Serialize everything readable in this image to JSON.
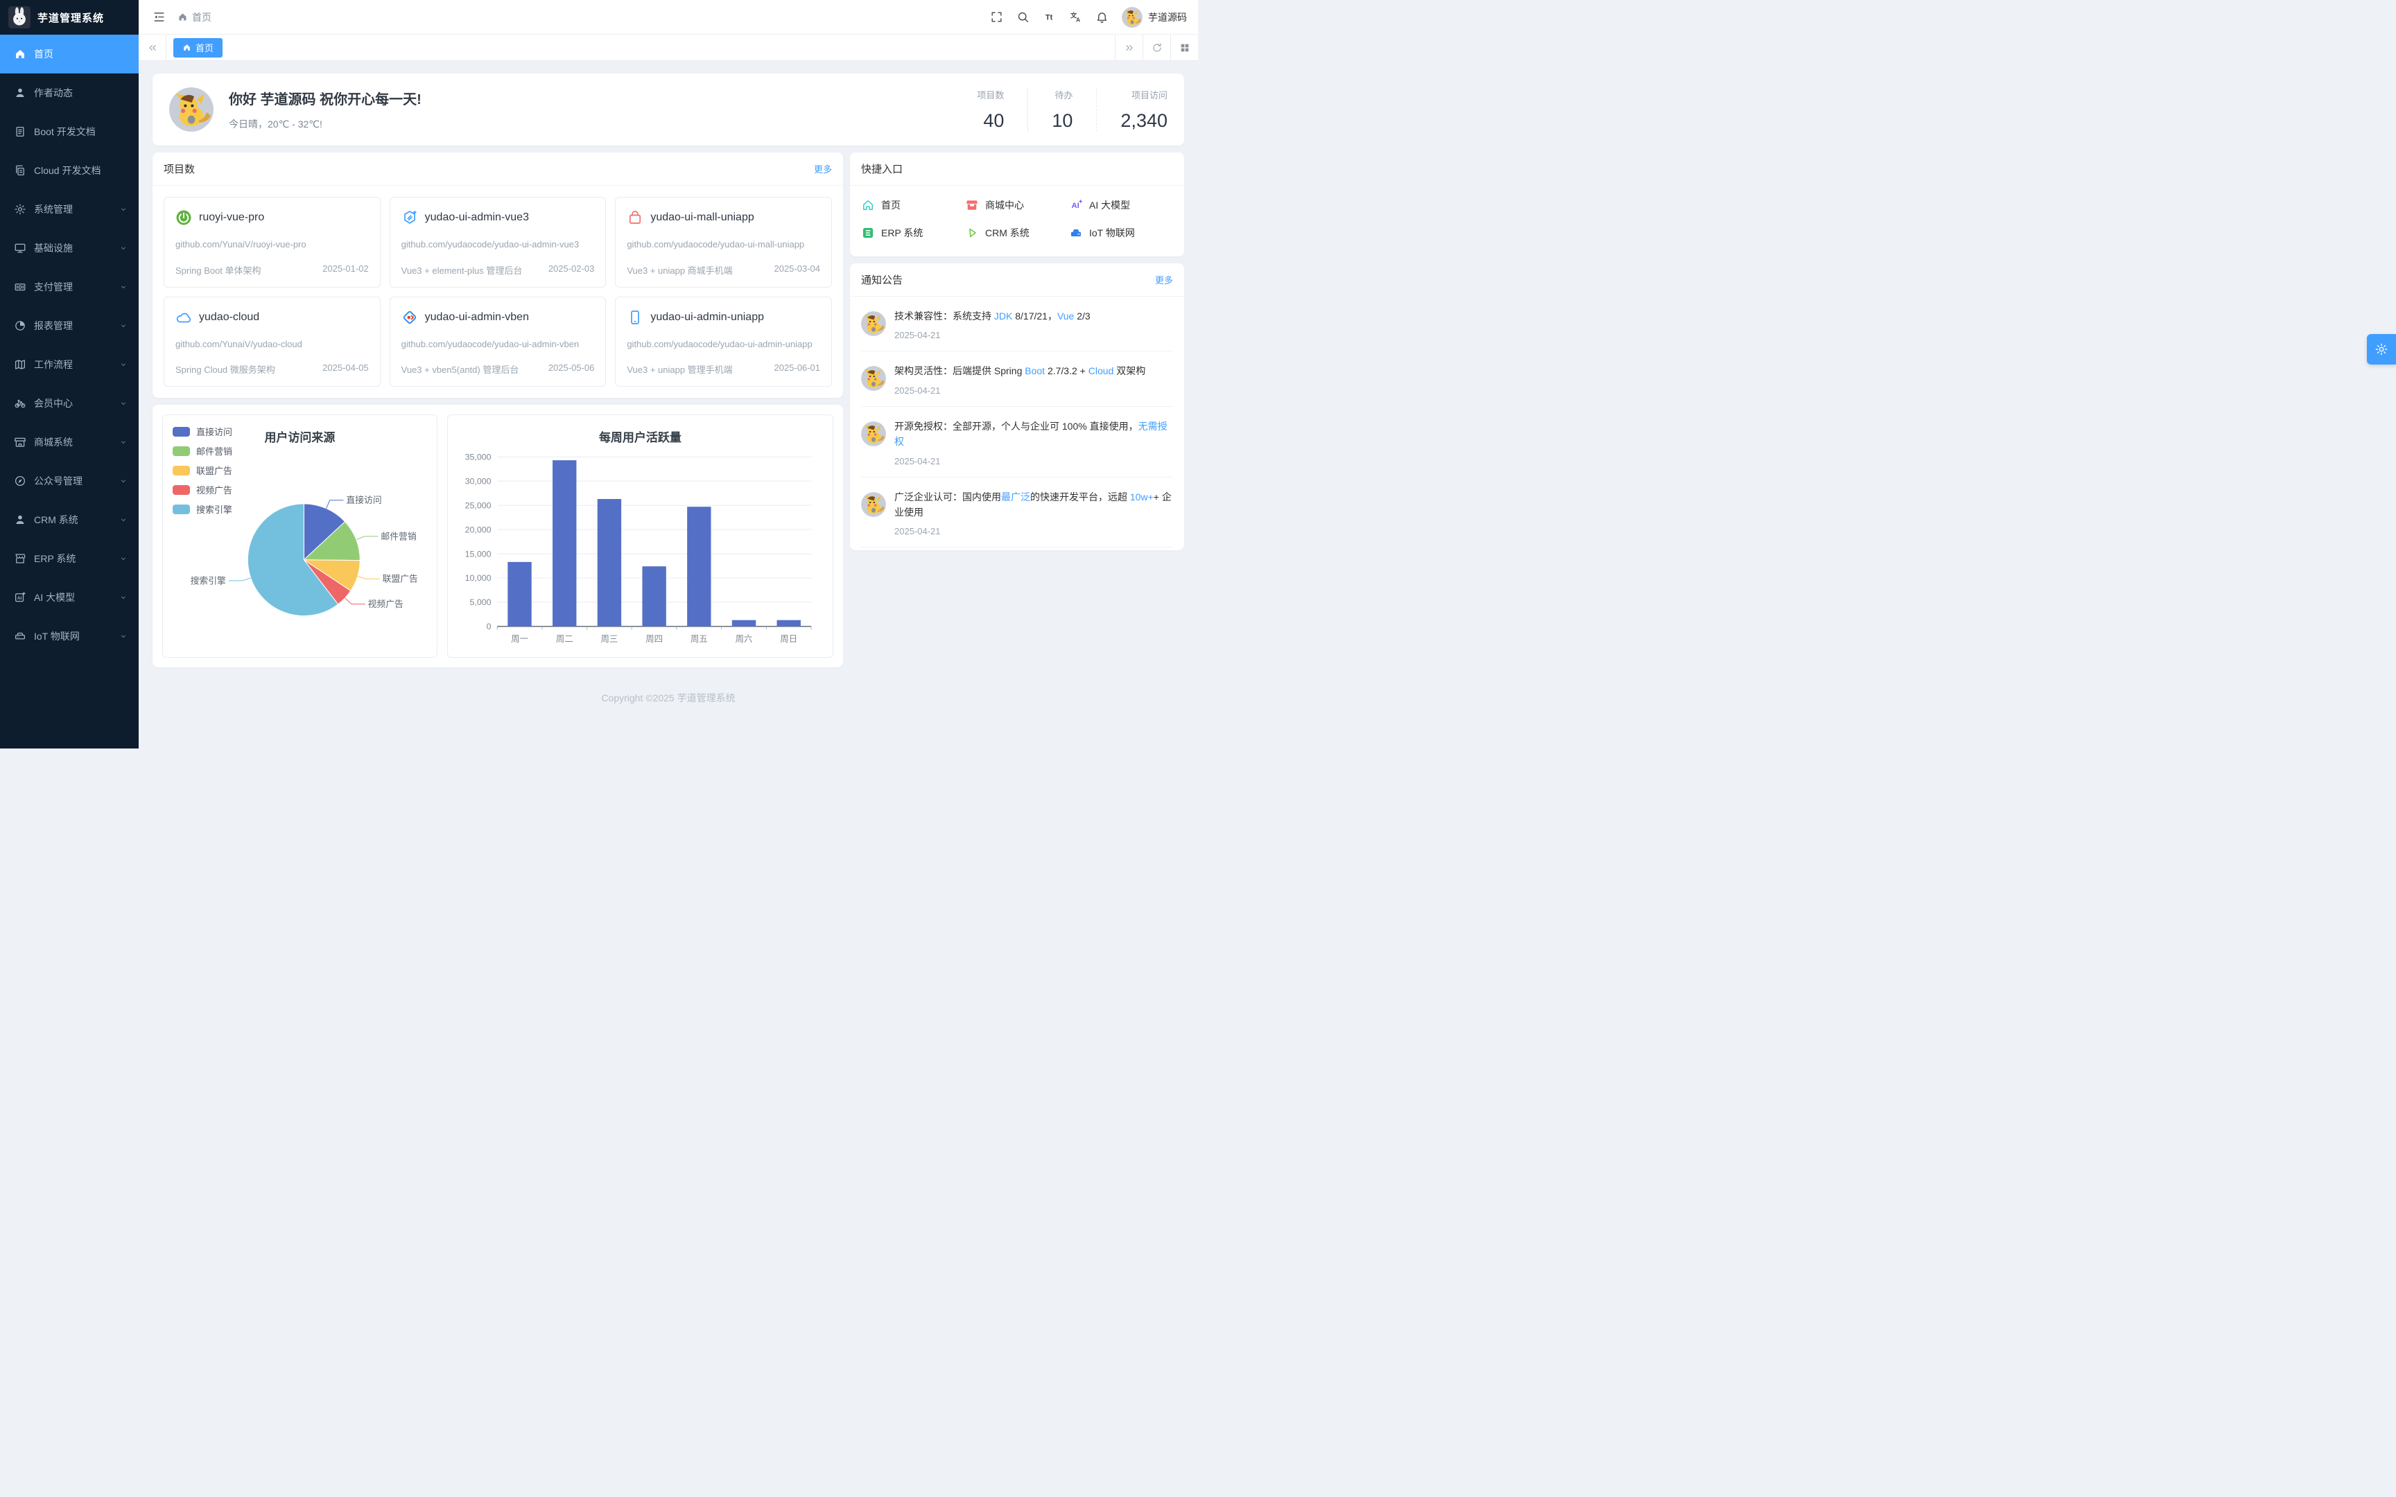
{
  "app": {
    "footer": "Copyright ©2025 芋道管理系统"
  },
  "sidebar": {
    "logo_title": "芋道管理系统",
    "items": [
      {
        "label": "首页",
        "icon": "home",
        "active": true,
        "children": false
      },
      {
        "label": "作者动态",
        "icon": "user",
        "children": false
      },
      {
        "label": "Boot 开发文档",
        "icon": "document",
        "children": false
      },
      {
        "label": "Cloud 开发文档",
        "icon": "documents",
        "children": false
      },
      {
        "label": "系统管理",
        "icon": "gear",
        "children": true
      },
      {
        "label": "基础设施",
        "icon": "monitor",
        "children": true
      },
      {
        "label": "支付管理",
        "icon": "money",
        "children": true
      },
      {
        "label": "报表管理",
        "icon": "pie",
        "children": true
      },
      {
        "label": "工作流程",
        "icon": "workflow",
        "children": true
      },
      {
        "label": "会员中心",
        "icon": "bicycle",
        "children": true
      },
      {
        "label": "商城系统",
        "icon": "shop",
        "children": true
      },
      {
        "label": "公众号管理",
        "icon": "compass",
        "children": true
      },
      {
        "label": "CRM 系统",
        "icon": "user",
        "children": true
      },
      {
        "label": "ERP 系统",
        "icon": "store",
        "children": true
      },
      {
        "label": "AI 大模型",
        "icon": "ai",
        "children": true
      },
      {
        "label": "IoT 物联网",
        "icon": "iot",
        "children": true
      }
    ]
  },
  "header": {
    "breadcrumb": "首页",
    "username": "芋道源码"
  },
  "tabbar": {
    "active_tab": "首页"
  },
  "welcome": {
    "title": "你好 芋道源码 祝你开心每一天!",
    "subtitle": "今日晴，20℃ - 32℃!",
    "stats": [
      {
        "label": "项目数",
        "value": "40"
      },
      {
        "label": "待办",
        "value": "10"
      },
      {
        "label": "项目访问",
        "value": "2,340"
      }
    ]
  },
  "projects": {
    "title": "项目数",
    "more": "更多",
    "cards": [
      {
        "name": "ruoyi-vue-pro",
        "icon": "spring",
        "color": "#62b142",
        "url": "github.com/YunaiV/ruoyi-vue-pro",
        "desc": "Spring Boot 单体架构",
        "date": "2025-01-02"
      },
      {
        "name": "yudao-ui-admin-vue3",
        "icon": "hexedit",
        "color": "#409eff",
        "url": "github.com/yudaocode/yudao-ui-admin-vue3",
        "desc": "Vue3 + element-plus 管理后台",
        "date": "2025-02-03"
      },
      {
        "name": "yudao-ui-mall-uniapp",
        "icon": "bag",
        "color": "#f56c6c",
        "url": "github.com/yudaocode/yudao-ui-mall-uniapp",
        "desc": "Vue3 + uniapp 商城手机端",
        "date": "2025-03-04"
      },
      {
        "name": "yudao-cloud",
        "icon": "cloud",
        "color": "#409eff",
        "url": "github.com/YunaiV/yudao-cloud",
        "desc": "Spring Cloud 微服务架构",
        "date": "2025-04-05"
      },
      {
        "name": "yudao-ui-admin-vben",
        "icon": "vben",
        "color": "#2d8cf0",
        "url": "github.com/yudaocode/yudao-ui-admin-vben",
        "desc": "Vue3 + vben5(antd) 管理后台",
        "date": "2025-05-06"
      },
      {
        "name": "yudao-ui-admin-uniapp",
        "icon": "phone",
        "color": "#409eff",
        "url": "github.com/yudaocode/yudao-ui-admin-uniapp",
        "desc": "Vue3 + uniapp 管理手机端",
        "date": "2025-06-01"
      }
    ]
  },
  "quick": {
    "title": "快捷入口",
    "links": [
      {
        "label": "首页",
        "icon": "qhome",
        "color": "#2ecfc0"
      },
      {
        "label": "商城中心",
        "icon": "qshop",
        "color": "#f56c6c"
      },
      {
        "label": "AI 大模型",
        "icon": "qai",
        "color": "#7b5bf3"
      },
      {
        "label": "ERP 系统",
        "icon": "qerp",
        "color": "#2fbf71"
      },
      {
        "label": "CRM 系统",
        "icon": "qcrm",
        "color": "#67c23a"
      },
      {
        "label": "IoT 物联网",
        "icon": "qiot",
        "color": "#2e7ef0"
      }
    ]
  },
  "notices": {
    "title": "通知公告",
    "more": "更多",
    "items": [
      {
        "segments": [
          {
            "t": "技术兼容性：系统支持 "
          },
          {
            "t": "JDK",
            "link": true
          },
          {
            "t": " 8/17/21，"
          },
          {
            "t": "Vue",
            "link": true
          },
          {
            "t": " 2/3"
          }
        ],
        "date": "2025-04-21"
      },
      {
        "segments": [
          {
            "t": "架构灵活性：后端提供 Spring "
          },
          {
            "t": "Boot",
            "link": true
          },
          {
            "t": " 2.7/3.2 + "
          },
          {
            "t": "Cloud",
            "link": true
          },
          {
            "t": " 双架构"
          }
        ],
        "date": "2025-04-21"
      },
      {
        "segments": [
          {
            "t": "开源免授权：全部开源，个人与企业可 100% 直接使用，"
          },
          {
            "t": "无需授权",
            "link": true
          }
        ],
        "date": "2025-04-21"
      },
      {
        "segments": [
          {
            "t": "广泛企业认可：国内使用"
          },
          {
            "t": "最广泛",
            "link": true
          },
          {
            "t": "的快速开发平台，远超 "
          },
          {
            "t": "10w+",
            "link": true
          },
          {
            "t": "+ 企业使用"
          }
        ],
        "date": "2025-04-21"
      }
    ]
  },
  "chart_data": [
    {
      "type": "pie",
      "title": "用户访问来源",
      "legend_position": "top-left",
      "legend": [
        "直接访问",
        "邮件营销",
        "联盟广告",
        "视频广告",
        "搜索引擎"
      ],
      "series": [
        {
          "name": "直接访问",
          "value": 335
        },
        {
          "name": "邮件营销",
          "value": 310
        },
        {
          "name": "联盟广告",
          "value": 234
        },
        {
          "name": "视频广告",
          "value": 135
        },
        {
          "name": "搜索引擎",
          "value": 1548
        }
      ],
      "colors": [
        "#5470c6",
        "#91cc75",
        "#fac858",
        "#ee6666",
        "#73c0de"
      ]
    },
    {
      "type": "bar",
      "title": "每周用户活跃量",
      "categories": [
        "周一",
        "周二",
        "周三",
        "周四",
        "周五",
        "周六",
        "周日"
      ],
      "values": [
        13300,
        34300,
        26300,
        12400,
        24700,
        1300,
        1300
      ],
      "xlabel": "",
      "ylabel": "",
      "ylim": [
        0,
        35000
      ],
      "ytick_step": 5000,
      "grid": true,
      "bar_color": "#5470c6"
    }
  ],
  "colors": {
    "primary": "#409eff",
    "sidebar_bg": "#0d1d2d",
    "content_bg": "#eef1f6",
    "link": "#409eff"
  }
}
